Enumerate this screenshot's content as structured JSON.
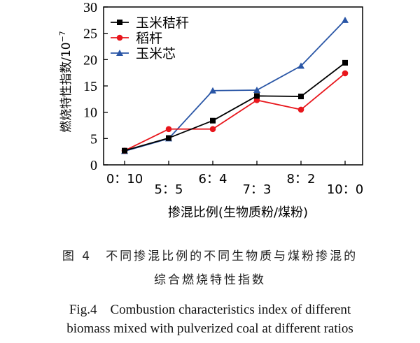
{
  "chart_data": {
    "type": "line",
    "ylabel": "燃烧特性指数/10",
    "ylabel_exp": "−7",
    "xlabel": "掺混比例(生物质粉/煤粉)",
    "categories": [
      "0：10",
      "5：5",
      "6：4",
      "7：3",
      "8：2",
      "10：0"
    ],
    "ylim": [
      0,
      30
    ],
    "yticks": [
      0,
      5,
      10,
      15,
      20,
      25,
      30
    ],
    "legend_position": "top-left",
    "grid": false,
    "series": [
      {
        "name": "玉米秸秆",
        "color": "#000000",
        "marker": "square",
        "values": [
          2.7,
          5.1,
          8.4,
          13.1,
          13.0,
          19.4
        ]
      },
      {
        "name": "稻杆",
        "color": "#e8161c",
        "marker": "circle",
        "values": [
          2.7,
          6.8,
          6.8,
          12.3,
          10.5,
          17.4
        ]
      },
      {
        "name": "玉米芯",
        "color": "#2a56a6",
        "marker": "triangle",
        "values": [
          2.6,
          5.0,
          14.1,
          14.2,
          18.8,
          27.5
        ]
      }
    ]
  },
  "caption": {
    "cn_line1": "图 4　不同掺混比例的不同生物质与煤粉掺混的",
    "cn_line2": "综合燃烧特性指数",
    "en_line1": "Fig.4　Combustion characteristics index of different",
    "en_line2": "biomass mixed with pulverized coal at different ratios"
  }
}
